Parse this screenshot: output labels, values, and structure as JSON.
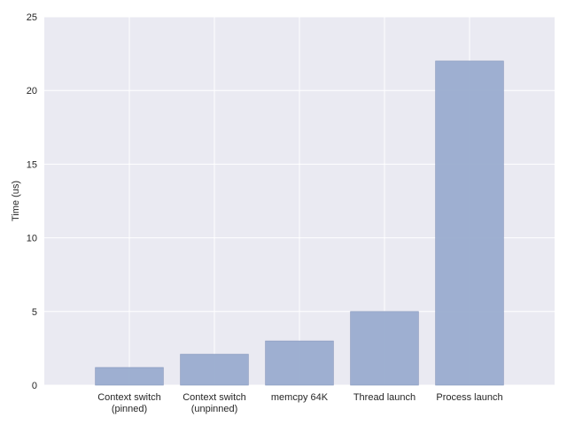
{
  "chart_data": {
    "type": "bar",
    "title": "",
    "xlabel": "",
    "ylabel": "Time (us)",
    "categories": [
      [
        "Context switch",
        "(pinned)"
      ],
      [
        "Context switch",
        "(unpinned)"
      ],
      [
        "memcpy 64K"
      ],
      [
        "Thread launch"
      ],
      [
        "Process launch"
      ]
    ],
    "values": [
      1.2,
      2.1,
      3.0,
      5.0,
      22.0
    ],
    "ylim": [
      0,
      25
    ],
    "xlim": [
      -1,
      5
    ],
    "yticks": [
      0,
      5,
      10,
      15,
      20,
      25
    ],
    "grid": true,
    "bar_width": 0.8,
    "colors": {
      "bar": "#9aaccf",
      "bar_edge": "#8596bb",
      "background": "#eaeaf2",
      "grid": "#ffffff"
    }
  }
}
